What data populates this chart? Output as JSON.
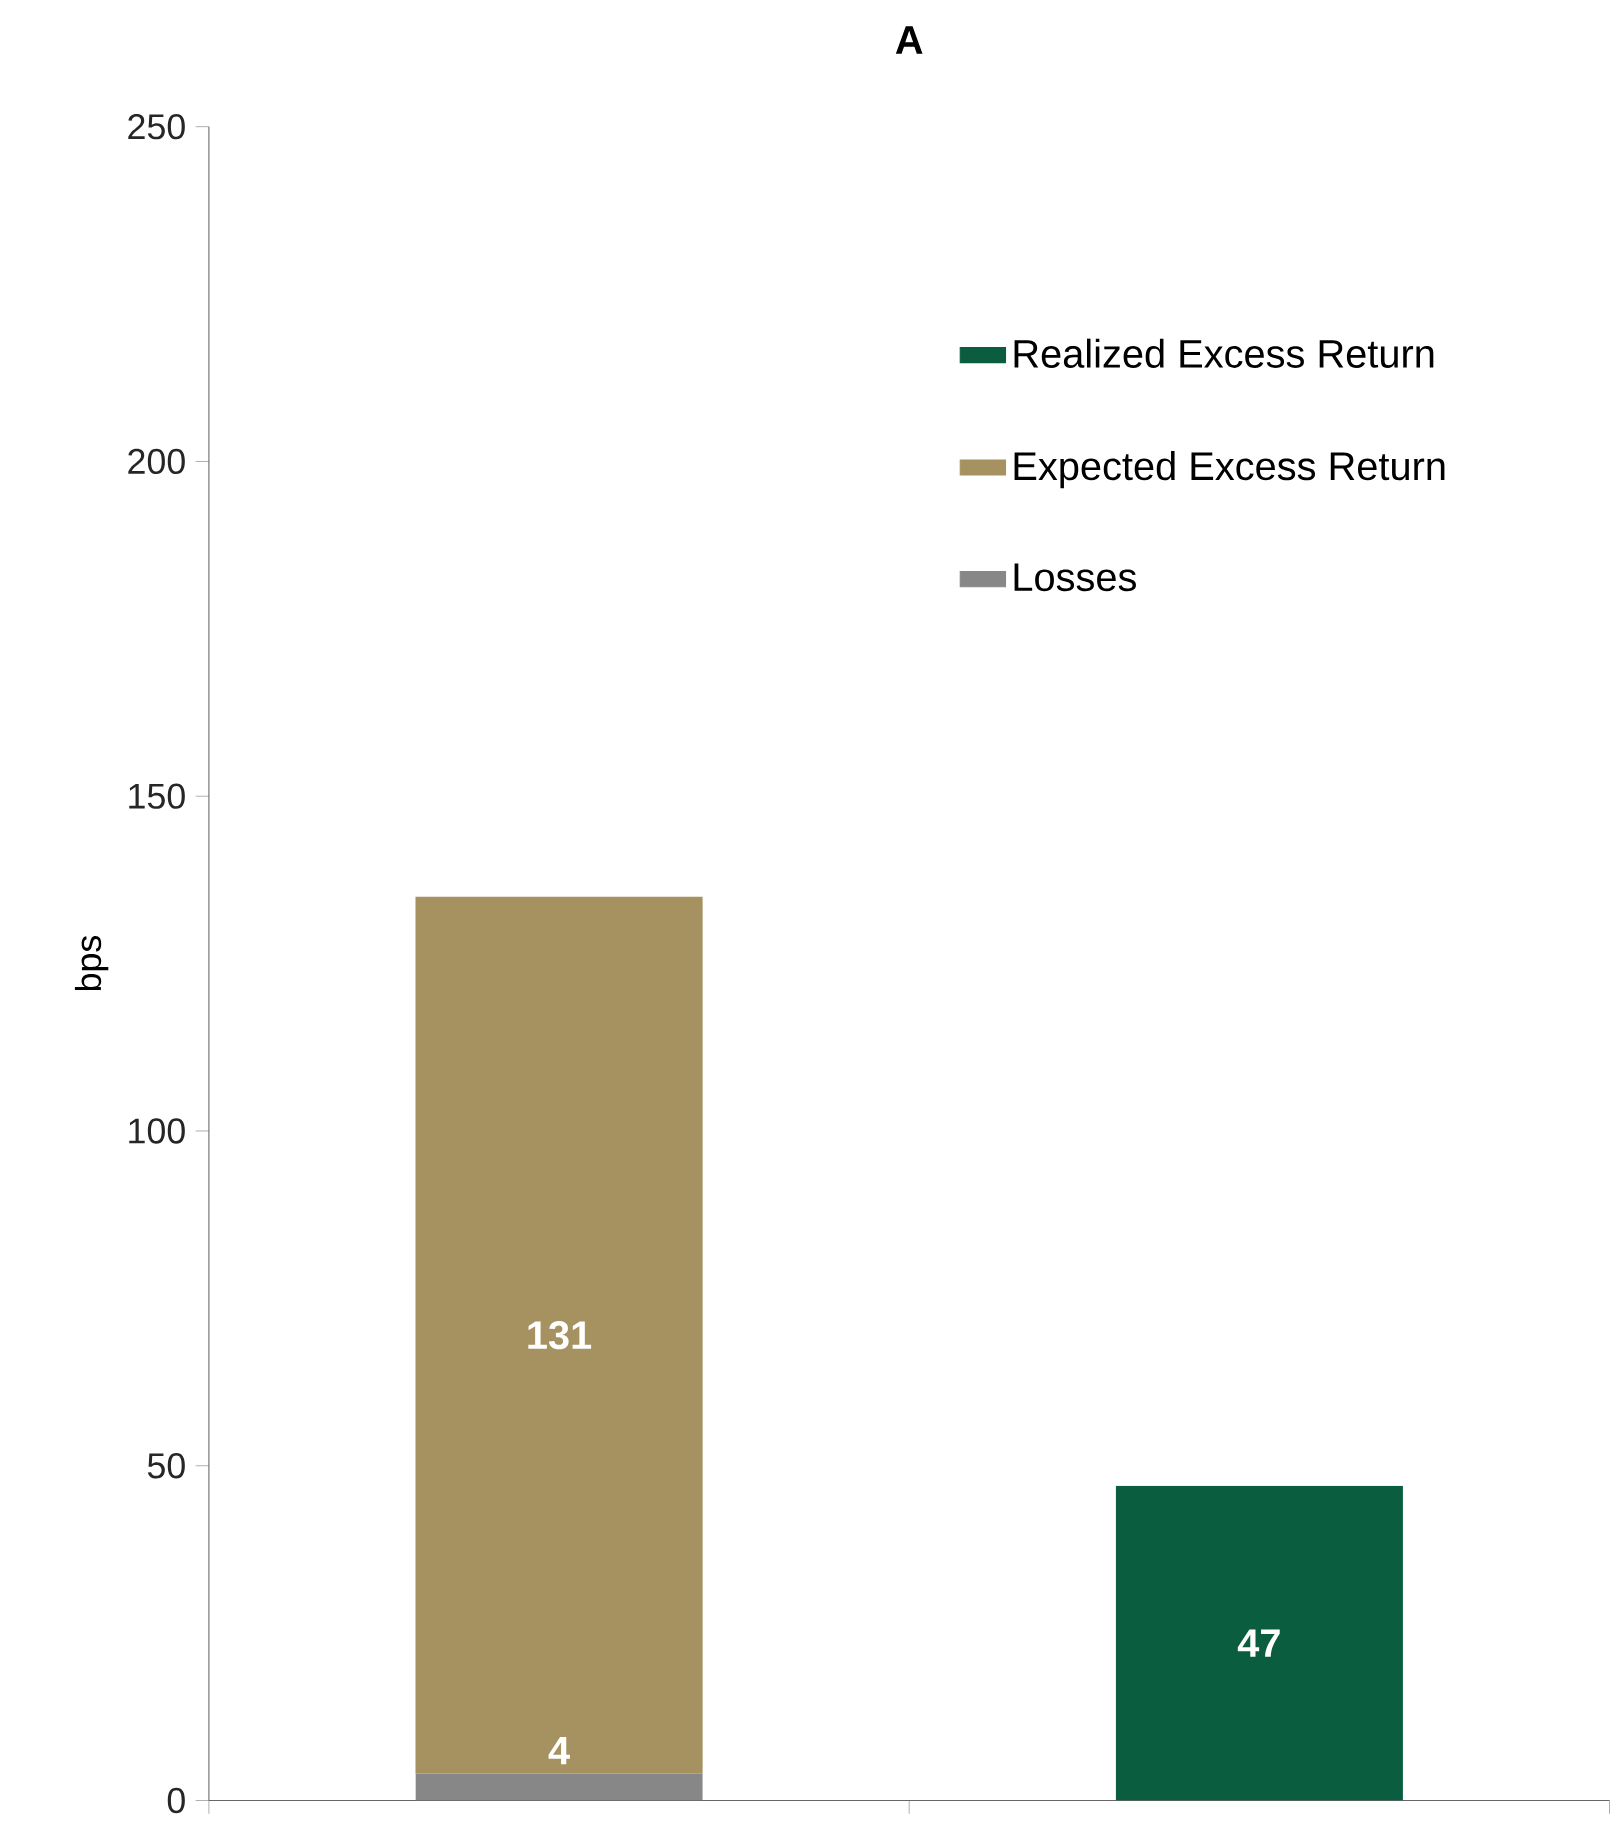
{
  "chart_data": {
    "type": "bar",
    "title": "A",
    "ylabel": "bps",
    "stacked": true,
    "categories": [
      null,
      null
    ],
    "series": [
      {
        "name": "Losses",
        "color": "#878787",
        "values": [
          4,
          null
        ]
      },
      {
        "name": "Expected Excess Return",
        "color": "#a69261",
        "values": [
          131,
          null
        ]
      },
      {
        "name": "Realized Excess Return",
        "color": "#0a5e3f",
        "values": [
          null,
          47
        ]
      }
    ],
    "ylim": [
      0,
      250
    ],
    "yticks": [
      0,
      50,
      100,
      150,
      200,
      250
    ],
    "data_labels": true,
    "legend": "top right",
    "grid": false
  }
}
